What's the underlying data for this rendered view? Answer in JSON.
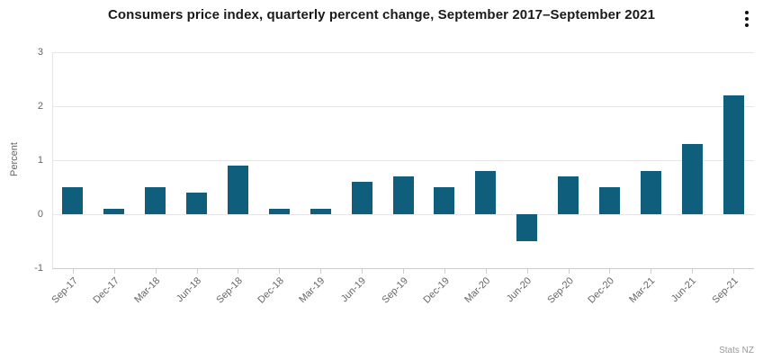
{
  "header": {
    "menu_icon": "kebab-menu-icon"
  },
  "chart_data": {
    "type": "bar",
    "title": "Consumers price index, quarterly percent change, September 2017–September 2021",
    "categories": [
      "Sep-17",
      "Dec-17",
      "Mar-18",
      "Jun-18",
      "Sep-18",
      "Dec-18",
      "Mar-19",
      "Jun-19",
      "Sep-19",
      "Dec-19",
      "Mar-20",
      "Jun-20",
      "Sep-20",
      "Dec-20",
      "Mar-21",
      "Jun-21",
      "Sep-21"
    ],
    "values": [
      0.5,
      0.1,
      0.5,
      0.4,
      0.9,
      0.1,
      0.1,
      0.6,
      0.7,
      0.5,
      0.8,
      -0.5,
      0.7,
      0.5,
      0.8,
      1.3,
      2.2
    ],
    "xlabel": "",
    "ylabel": "Percent",
    "ylim": [
      -1,
      3
    ],
    "yticks": [
      3,
      2,
      1,
      0,
      -1
    ],
    "grid": true,
    "legend": "none"
  },
  "colors": {
    "bar": "#0F5E7C",
    "grid": "#e6e6e6",
    "axis_line": "#cccccc",
    "tick_label": "#666666",
    "title": "#1a1a1a",
    "credits": "#999999"
  },
  "credits": {
    "label": "Stats NZ"
  }
}
